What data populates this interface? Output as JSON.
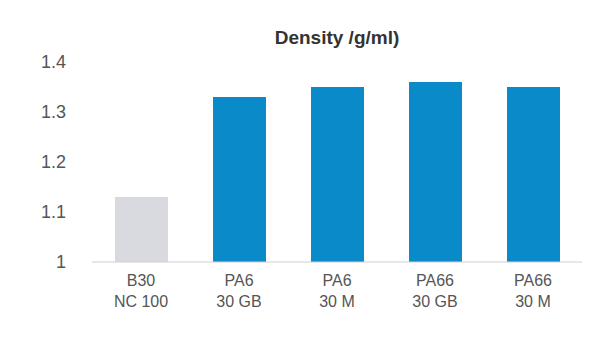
{
  "chart_data": {
    "type": "bar",
    "title": "Density /g/ml)",
    "categories": [
      "B30 NC 100",
      "PA6 30 GB",
      "PA6 30 M",
      "PA66 30 GB",
      "PA66 30 M"
    ],
    "values": [
      1.13,
      1.33,
      1.35,
      1.36,
      1.35
    ],
    "colors": [
      "#d9dadf",
      "#0a8ac8",
      "#0a8ac8",
      "#0a8ac8",
      "#0a8ac8"
    ],
    "ylim": [
      1,
      1.4
    ],
    "yticks": [
      1,
      1.1,
      1.2,
      1.3,
      1.4
    ],
    "grid": false
  }
}
